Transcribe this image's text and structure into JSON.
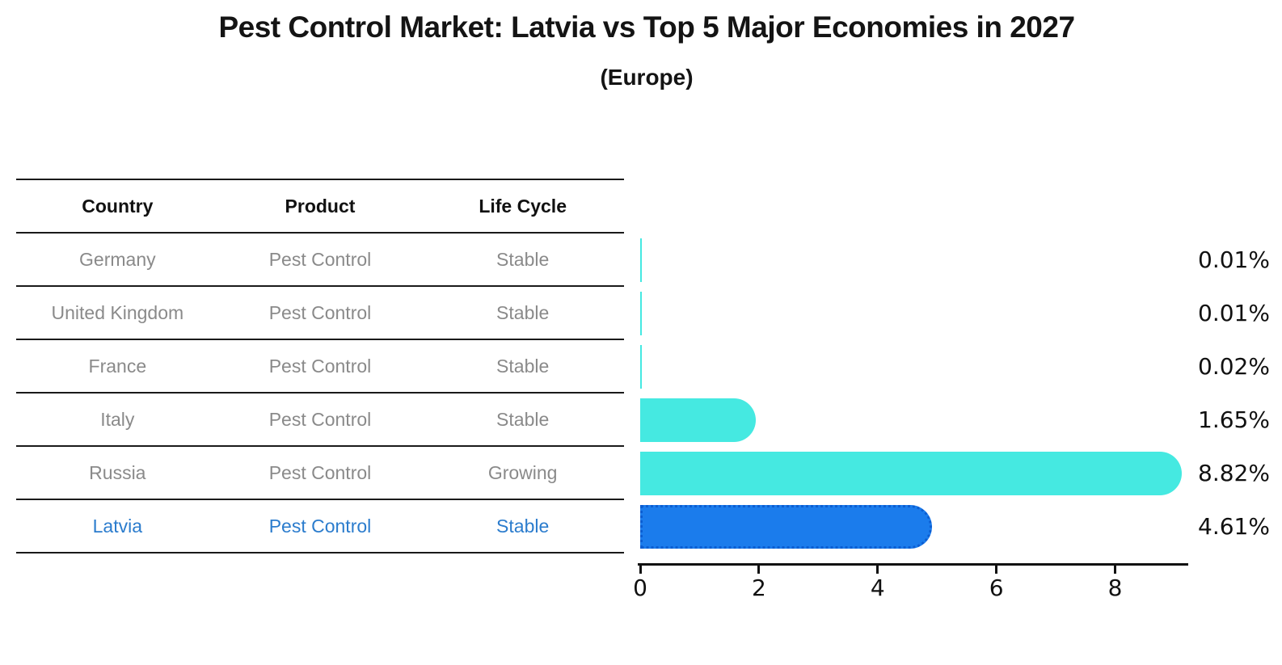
{
  "title": "Pest Control Market: Latvia vs Top 5 Major Economies in 2027",
  "subtitle": "(Europe)",
  "colors": {
    "bar_default": "#45e9e1",
    "bar_highlight": "#1b7cec",
    "bar_highlight_border": "#0c5ed2",
    "table_text": "#8a8a8a",
    "table_header_text": "#111111",
    "highlight_text": "#2b7ccd",
    "axis": "#111111",
    "line": "#1a1a1a"
  },
  "table": {
    "headers": [
      "Country",
      "Product",
      "Life Cycle"
    ],
    "rows": [
      {
        "country": "Germany",
        "product": "Pest Control",
        "life_cycle": "Stable",
        "highlighted": false
      },
      {
        "country": "United Kingdom",
        "product": "Pest Control",
        "life_cycle": "Stable",
        "highlighted": false
      },
      {
        "country": "France",
        "product": "Pest Control",
        "life_cycle": "Stable",
        "highlighted": false
      },
      {
        "country": "Italy",
        "product": "Pest Control",
        "life_cycle": "Stable",
        "highlighted": false
      },
      {
        "country": "Russia",
        "product": "Pest Control",
        "life_cycle": "Growing",
        "highlighted": false
      },
      {
        "country": "Latvia",
        "product": "Pest Control",
        "life_cycle": "Stable",
        "highlighted": true
      }
    ]
  },
  "chart_data": {
    "type": "bar",
    "orientation": "horizontal",
    "title": "Pest Control Market: Latvia vs Top 5 Major Economies in 2027",
    "subtitle": "(Europe)",
    "categories": [
      "Germany",
      "United Kingdom",
      "France",
      "Italy",
      "Russia",
      "Latvia"
    ],
    "values": [
      0.01,
      0.01,
      0.02,
      1.65,
      8.82,
      4.61
    ],
    "value_labels": [
      "0.01%",
      "0.01%",
      "0.02%",
      "1.65%",
      "8.82%",
      "4.61%"
    ],
    "x_ticks": [
      "0",
      "2",
      "4",
      "6",
      "8"
    ],
    "xlim": [
      0,
      9.25
    ],
    "xlabel": "",
    "ylabel": "",
    "grid": false,
    "legend": false,
    "highlight_index": 5,
    "highlight_category": "Latvia"
  }
}
